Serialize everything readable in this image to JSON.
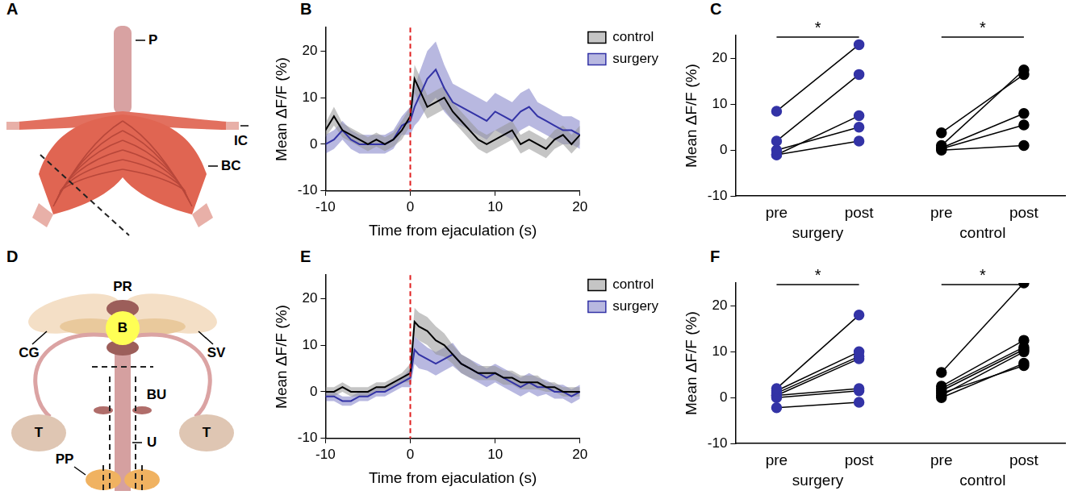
{
  "chart_data": [
    {
      "panel": "B",
      "type": "line",
      "xlabel": "Time from ejaculation (s)",
      "ylabel": "Mean ΔF/F (%)",
      "x": [
        -10,
        -9,
        -8,
        -7,
        -6,
        -5,
        -4,
        -3,
        -2,
        -1,
        0,
        0.5,
        1,
        2,
        3,
        4,
        5,
        6,
        7,
        8,
        9,
        10,
        11,
        12,
        13,
        14,
        15,
        16,
        17,
        18,
        19,
        20
      ],
      "series": [
        {
          "name": "control",
          "color": "#000000",
          "values": [
            3,
            6,
            3,
            2,
            1,
            0,
            1,
            0,
            1,
            3,
            6,
            14,
            12,
            8,
            9,
            10,
            7,
            5,
            3,
            1,
            0,
            1,
            2,
            3,
            0,
            1,
            0,
            -1,
            1,
            2,
            0,
            2
          ],
          "error": [
            1.5,
            2,
            1.5,
            1.5,
            1.5,
            1.5,
            1.5,
            1.5,
            1.5,
            2,
            2,
            3,
            3,
            2.5,
            2.5,
            2.5,
            2,
            2,
            2,
            2,
            2,
            2,
            2,
            2,
            2,
            2,
            2,
            2,
            2,
            2,
            2,
            2
          ]
        },
        {
          "name": "surgery",
          "color": "#3333a6",
          "values": [
            0,
            1,
            3,
            1,
            0,
            0,
            0,
            0,
            1,
            4,
            5,
            8,
            10,
            14,
            16,
            12,
            9,
            8,
            7,
            6,
            5,
            7,
            6,
            5,
            7,
            8,
            6,
            5,
            4,
            3,
            3,
            2
          ],
          "error": [
            2,
            2,
            2,
            2,
            2,
            2,
            2,
            2,
            2,
            2,
            3,
            4,
            5,
            6,
            6,
            5,
            4,
            4,
            4,
            4,
            4,
            4,
            4,
            4,
            4,
            4,
            3,
            3,
            3,
            3,
            3,
            3
          ]
        }
      ],
      "reference_line": {
        "x": 0,
        "color": "#e02020",
        "line_style": "dashed"
      },
      "xlim": [
        -10,
        20
      ],
      "xticks": [
        -10,
        0,
        10,
        20
      ],
      "ylim": [
        -10,
        25
      ],
      "yticks": [
        -10,
        0,
        10,
        20
      ],
      "grid": false,
      "legend": "right"
    },
    {
      "panel": "C",
      "type": "paired",
      "ylabel": "Mean ΔF/F (%)",
      "categories": [
        "pre",
        "post",
        "pre",
        "post"
      ],
      "series": [
        {
          "name": "surgery",
          "color": "#3333a6",
          "significance": "*",
          "pre": [
            8.5,
            2,
            0,
            -1,
            -1
          ],
          "post": [
            23,
            16.5,
            5,
            7.5,
            2
          ]
        },
        {
          "name": "control",
          "color": "#000000",
          "significance": "*",
          "pre": [
            3.8,
            1,
            0.5,
            0.3,
            0
          ],
          "post": [
            16.5,
            17.5,
            8,
            5.5,
            1
          ]
        }
      ],
      "ylim": [
        -10,
        25
      ],
      "yticks": [
        -10,
        0,
        10,
        20
      ],
      "grid": false
    },
    {
      "panel": "E",
      "type": "line",
      "xlabel": "Time from ejaculation (s)",
      "ylabel": "Mean ΔF/F (%)",
      "x": [
        -10,
        -9,
        -8,
        -7,
        -6,
        -5,
        -4,
        -3,
        -2,
        -1,
        0,
        0.5,
        1,
        2,
        3,
        4,
        5,
        6,
        7,
        8,
        9,
        10,
        11,
        12,
        13,
        14,
        15,
        16,
        17,
        18,
        19,
        20
      ],
      "series": [
        {
          "name": "control",
          "color": "#000000",
          "values": [
            0,
            0,
            1,
            0,
            0,
            0,
            1,
            1,
            2,
            3,
            4,
            15,
            14,
            13,
            11,
            10,
            8,
            6,
            5,
            4,
            4,
            4,
            3,
            3,
            2,
            2,
            2,
            1,
            1,
            0,
            0,
            0
          ],
          "error": [
            1,
            1,
            1,
            1,
            1,
            1,
            1,
            1,
            1,
            1,
            2,
            3,
            3,
            3,
            3,
            2.5,
            2,
            2,
            2,
            1.5,
            1.5,
            1.5,
            1.5,
            1.5,
            1.5,
            1.5,
            1.5,
            1,
            1,
            1,
            1,
            1
          ]
        },
        {
          "name": "surgery",
          "color": "#3333a6",
          "values": [
            -1,
            -1,
            -2,
            -2,
            -1,
            -1,
            0,
            0,
            1,
            2,
            3,
            9,
            8,
            7,
            6,
            7,
            8,
            6,
            5,
            4,
            3,
            4,
            3,
            2,
            1,
            2,
            1,
            1,
            0,
            0,
            -1,
            0
          ],
          "error": [
            1,
            1,
            1,
            1,
            1,
            1,
            1,
            1,
            1,
            1,
            2,
            3,
            3,
            2.5,
            2.5,
            2.5,
            2.5,
            2,
            2,
            2,
            2,
            2,
            2,
            2,
            2,
            2,
            2,
            1.5,
            1.5,
            1.5,
            1.5,
            1.5
          ]
        }
      ],
      "reference_line": {
        "x": 0,
        "color": "#e02020",
        "line_style": "dashed"
      },
      "xlim": [
        -10,
        20
      ],
      "xticks": [
        -10,
        0,
        10,
        20
      ],
      "ylim": [
        -10,
        25
      ],
      "yticks": [
        -10,
        0,
        10,
        20
      ],
      "grid": false,
      "legend": "right"
    },
    {
      "panel": "F",
      "type": "paired",
      "ylabel": "Mean ΔF/F (%)",
      "categories": [
        "pre",
        "post",
        "pre",
        "post"
      ],
      "series": [
        {
          "name": "surgery",
          "color": "#3333a6",
          "significance": "*",
          "pre": [
            2,
            1.5,
            1,
            0.5,
            0.5,
            0,
            -2.2
          ],
          "post": [
            18,
            10,
            9,
            8.5,
            2,
            1.5,
            -1
          ]
        },
        {
          "name": "control",
          "color": "#000000",
          "significance": "*",
          "pre": [
            5.5,
            2.5,
            2,
            1.5,
            0.5,
            0,
            1
          ],
          "post": [
            25,
            12.5,
            11,
            10.5,
            10,
            7.5,
            7
          ]
        }
      ],
      "ylim": [
        -10,
        25
      ],
      "yticks": [
        -10,
        0,
        10,
        20
      ],
      "grid": false
    }
  ],
  "diagrams": [
    {
      "panel": "A",
      "labels": [
        "P",
        "IC",
        "BC"
      ]
    },
    {
      "panel": "D",
      "labels": [
        "PR",
        "CG",
        "SV",
        "B",
        "BU",
        "T",
        "T",
        "U",
        "PP"
      ]
    }
  ]
}
